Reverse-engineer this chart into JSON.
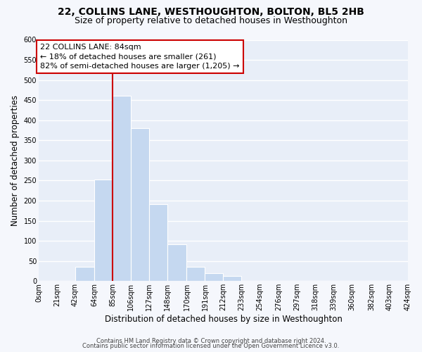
{
  "title": "22, COLLINS LANE, WESTHOUGHTON, BOLTON, BL5 2HB",
  "subtitle": "Size of property relative to detached houses in Westhoughton",
  "xlabel": "Distribution of detached houses by size in Westhoughton",
  "ylabel": "Number of detached properties",
  "bar_color": "#c5d8f0",
  "background_color": "#e8eef8",
  "grid_color": "#ffffff",
  "bin_edges": [
    0,
    21,
    42,
    64,
    85,
    106,
    127,
    148,
    170,
    191,
    212,
    233,
    254,
    276,
    297,
    318,
    339,
    360,
    382,
    403,
    424
  ],
  "bin_labels": [
    "0sqm",
    "21sqm",
    "42sqm",
    "64sqm",
    "85sqm",
    "106sqm",
    "127sqm",
    "148sqm",
    "170sqm",
    "191sqm",
    "212sqm",
    "233sqm",
    "254sqm",
    "276sqm",
    "297sqm",
    "318sqm",
    "339sqm",
    "360sqm",
    "382sqm",
    "403sqm",
    "424sqm"
  ],
  "bar_heights": [
    0,
    0,
    35,
    252,
    460,
    381,
    192,
    92,
    35,
    20,
    13,
    0,
    0,
    0,
    0,
    0,
    0,
    0,
    0,
    0
  ],
  "ylim": [
    0,
    600
  ],
  "yticks": [
    0,
    50,
    100,
    150,
    200,
    250,
    300,
    350,
    400,
    450,
    500,
    550,
    600
  ],
  "property_line_x": 85,
  "property_line_color": "#cc0000",
  "annotation_line1": "22 COLLINS LANE: 84sqm",
  "annotation_line2": "← 18% of detached houses are smaller (261)",
  "annotation_line3": "82% of semi-detached houses are larger (1,205) →",
  "annotation_box_color": "#ffffff",
  "annotation_box_edge": "#cc0000",
  "footer_line1": "Contains HM Land Registry data © Crown copyright and database right 2024.",
  "footer_line2": "Contains public sector information licensed under the Open Government Licence v3.0.",
  "title_fontsize": 10,
  "subtitle_fontsize": 9,
  "axis_label_fontsize": 8.5,
  "tick_fontsize": 7,
  "annotation_fontsize": 8,
  "footer_fontsize": 6
}
